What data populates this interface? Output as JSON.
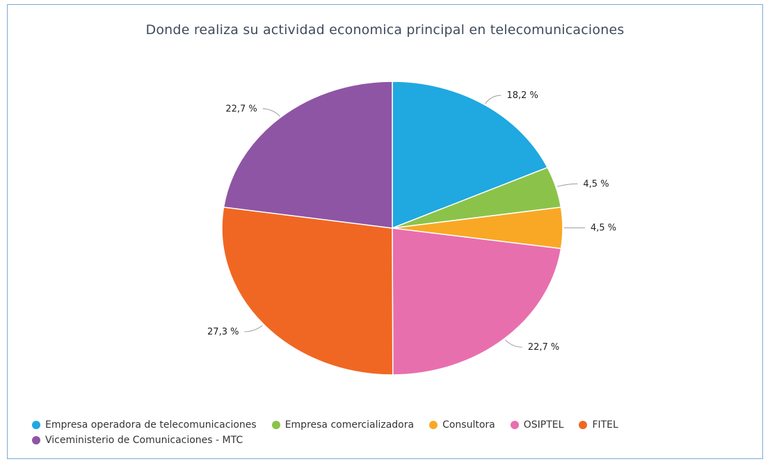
{
  "chart_data": {
    "type": "pie",
    "title": "Donde realiza su actividad economica principal en telecomunicaciones",
    "slices": [
      {
        "name": "Empresa operadora de telecomunicaciones",
        "value": 18.2,
        "label": "18,2 %",
        "color": "#20a8e0"
      },
      {
        "name": "Empresa comercializadora",
        "value": 4.5,
        "label": "4,5 %",
        "color": "#8bc34a"
      },
      {
        "name": "Consultora",
        "value": 4.5,
        "label": "4,5 %",
        "color": "#f9a825"
      },
      {
        "name": "OSIPTEL",
        "value": 22.7,
        "label": "22,7 %",
        "color": "#e86fad"
      },
      {
        "name": "FITEL",
        "value": 27.3,
        "label": "27,3 %",
        "color": "#f06723"
      },
      {
        "name": "Viceministerio de Comunicaciones - MTC",
        "value": 22.7,
        "label": "22,7 %",
        "color": "#8e55a5"
      }
    ],
    "legend_position": "bottom-left"
  }
}
